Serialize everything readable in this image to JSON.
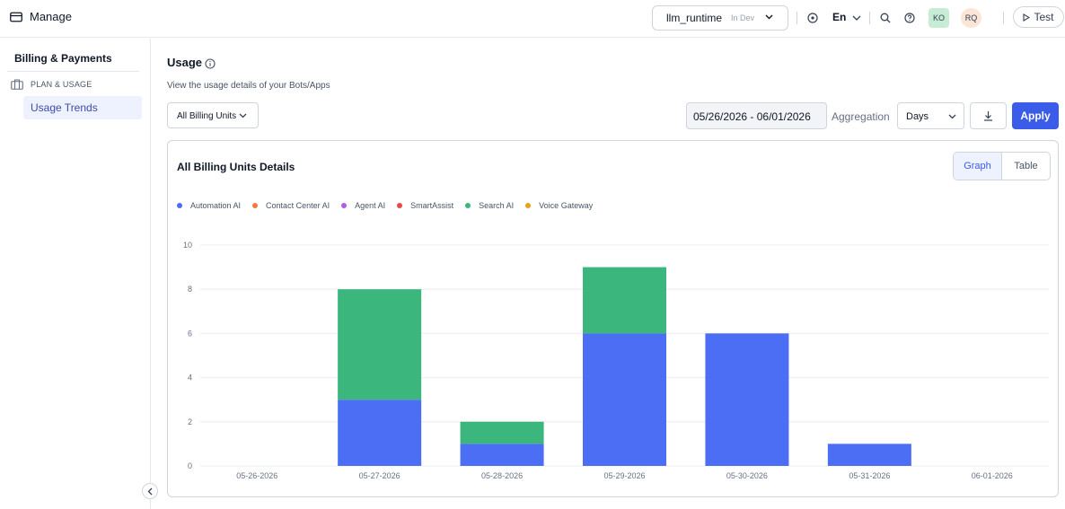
{
  "topbar": {
    "title": "Manage",
    "app_name": "llm_runtime",
    "env_tag": "In Dev",
    "language": "En",
    "avatar1": "KO",
    "avatar2": "RQ",
    "test_label": "Test"
  },
  "sidebar": {
    "heading": "Billing & Payments",
    "group": "PLAN & USAGE",
    "item": "Usage Trends"
  },
  "main": {
    "title": "Usage",
    "subtitle": "View the usage details of your Bots/Apps",
    "billing_units": "All Billing Units",
    "date_range": "05/26/2026 - 06/01/2026",
    "aggregation_label": "Aggregation",
    "aggregation_value": "Days",
    "apply_label": "Apply"
  },
  "card": {
    "title": "All Billing Units Details",
    "tab_graph": "Graph",
    "tab_table": "Table"
  },
  "chart_data": {
    "type": "bar",
    "stacked": true,
    "categories": [
      "05-26-2026",
      "05-27-2026",
      "05-28-2026",
      "05-29-2026",
      "05-30-2026",
      "05-31-2026",
      "06-01-2026"
    ],
    "series": [
      {
        "name": "Automation AI",
        "color": "#4c6ef5",
        "values": [
          0,
          3,
          1,
          6,
          6,
          1,
          0
        ]
      },
      {
        "name": "Contact Center AI",
        "color": "#f5793b",
        "values": [
          0,
          0,
          0,
          0,
          0,
          0,
          0
        ]
      },
      {
        "name": "Agent AI",
        "color": "#b45be8",
        "values": [
          0,
          0,
          0,
          0,
          0,
          0,
          0
        ]
      },
      {
        "name": "SmartAssist",
        "color": "#e5484d",
        "values": [
          0,
          0,
          0,
          0,
          0,
          0,
          0
        ]
      },
      {
        "name": "Search AI",
        "color": "#3bb77e",
        "values": [
          0,
          5,
          1,
          3,
          0,
          0,
          0
        ]
      },
      {
        "name": "Voice Gateway",
        "color": "#e8a317",
        "values": [
          0,
          0,
          0,
          0,
          0,
          0,
          0
        ]
      }
    ],
    "yticks": [
      "0",
      "2",
      "4",
      "6",
      "8",
      "10"
    ],
    "ylim": [
      0,
      10
    ],
    "grid": true,
    "legend": "top-left"
  }
}
